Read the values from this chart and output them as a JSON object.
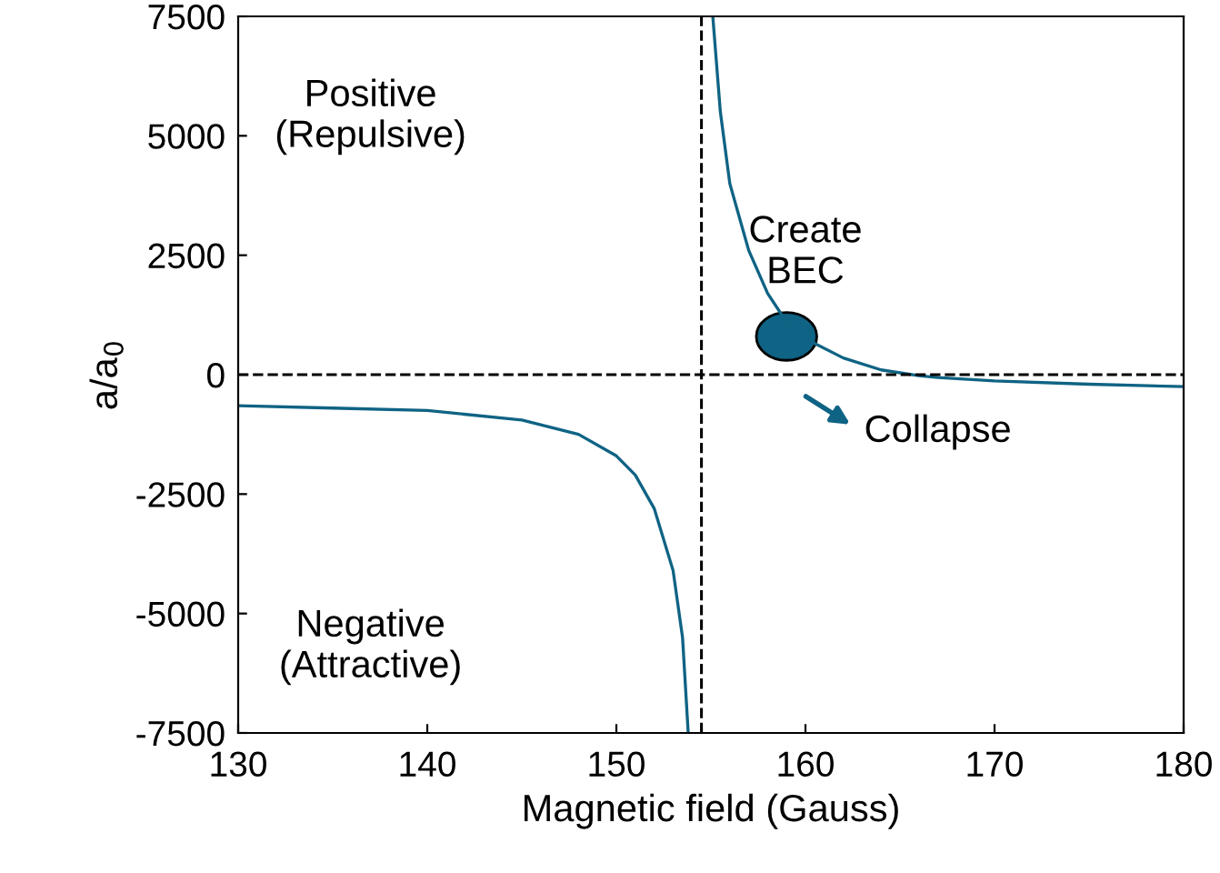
{
  "chart_data": {
    "type": "line",
    "xlabel": "Magnetic field (Gauss)",
    "ylabel": "a/a$_{0}$",
    "series": [
      {
        "color": "#0f6384",
        "x": [
          130,
          135,
          140,
          145,
          148,
          150,
          151,
          152,
          153,
          153.5,
          153.8
        ],
        "values": [
          -650,
          -700,
          -750,
          -950,
          -1250,
          -1700,
          -2100,
          -2800,
          -4100,
          -5500,
          -7500
        ]
      },
      {
        "color": "#0f6384",
        "x": [
          155.1,
          155.5,
          156,
          157,
          158,
          159,
          160,
          162,
          164,
          166,
          167,
          170,
          175,
          180
        ],
        "values": [
          7500,
          5500,
          4000,
          2600,
          1700,
          1100,
          750,
          350,
          100,
          -20,
          -60,
          -130,
          -200,
          -250
        ]
      }
    ],
    "xlim": [
      130,
      180
    ],
    "xticks": [
      130,
      140,
      150,
      160,
      170,
      180
    ],
    "ylim": [
      -7500,
      7500
    ],
    "yticks": [
      -7500,
      -5000,
      -2500,
      0,
      2500,
      5000,
      7500
    ],
    "ref_lines": [
      {
        "axis": "x",
        "value": 154.5,
        "line_style": "dashed",
        "color": "#000000"
      },
      {
        "axis": "y",
        "value": 0,
        "line_style": "dashed",
        "color": "#000000"
      }
    ],
    "annotations": [
      "Positive\n(Repulsive)",
      "Negative\n(Attractive)",
      "Create\nBEC",
      "Collapse"
    ],
    "grid": false,
    "legend": false,
    "marker": "none",
    "line_style": "solid"
  }
}
